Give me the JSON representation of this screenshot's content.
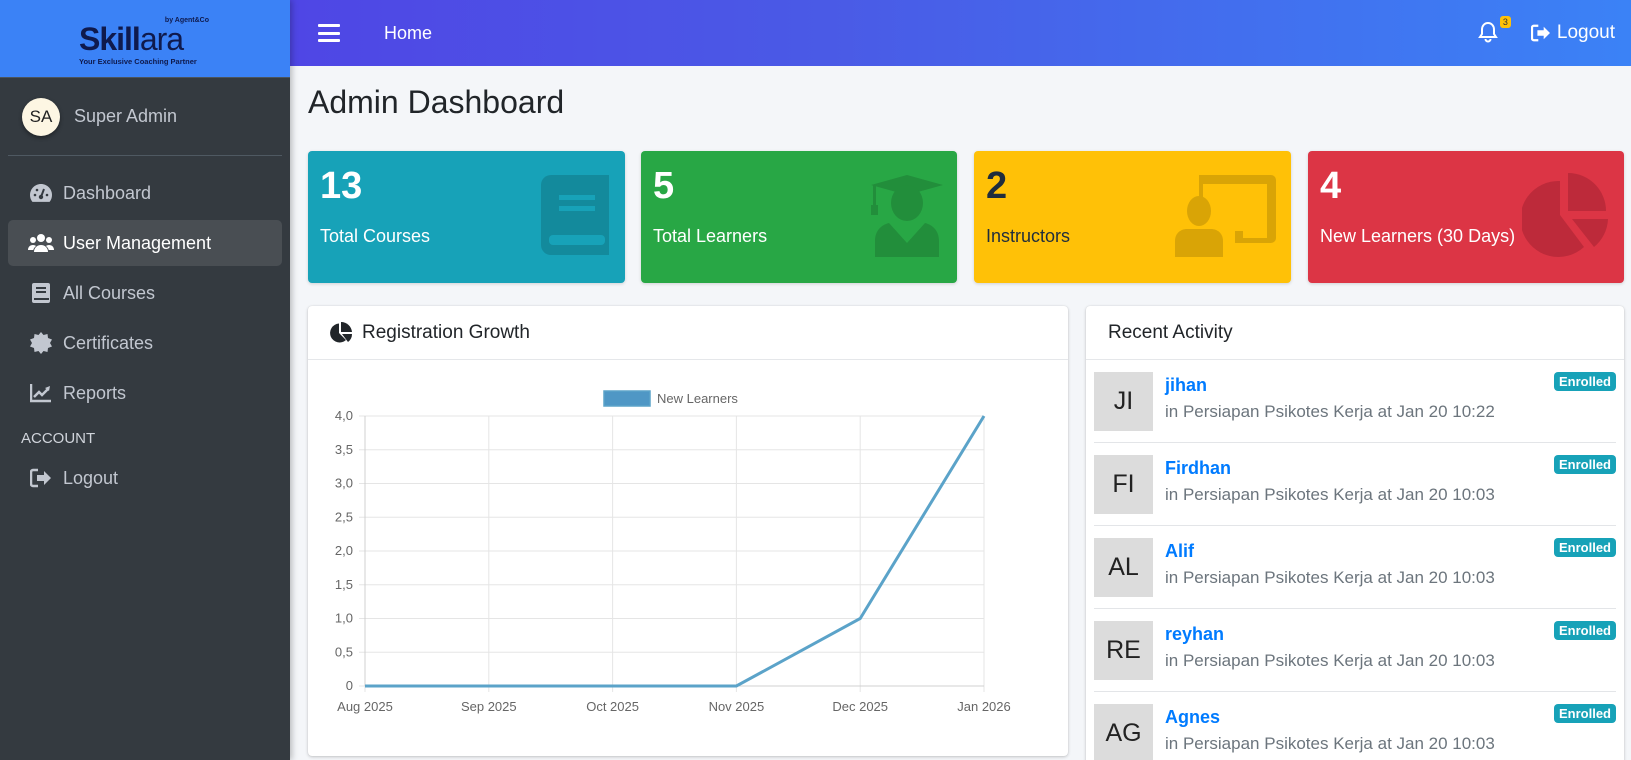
{
  "brand": {
    "by": "by Agent&Co",
    "name_bold": "Skill",
    "name_light": "ara",
    "tagline": "Your Exclusive Coaching Partner",
    "color": "#3b82f6"
  },
  "user": {
    "initials": "SA",
    "name": "Super Admin"
  },
  "sidebar": {
    "items": [
      {
        "label": "Dashboard",
        "icon": "tachometer-icon",
        "active": false
      },
      {
        "label": "User Management",
        "icon": "users-icon",
        "active": true
      },
      {
        "label": "All Courses",
        "icon": "book-icon",
        "active": false
      },
      {
        "label": "Certificates",
        "icon": "certificate-icon",
        "active": false
      },
      {
        "label": "Reports",
        "icon": "chart-line-icon",
        "active": false
      }
    ],
    "account_header": "ACCOUNT",
    "logout_label": "Logout"
  },
  "topbar": {
    "home_label": "Home",
    "notification_count": "3",
    "logout_label": "Logout"
  },
  "page": {
    "title": "Admin Dashboard"
  },
  "stats": [
    {
      "value": "13",
      "label": "Total Courses",
      "icon": "book-icon",
      "color": "#17a2b8"
    },
    {
      "value": "5",
      "label": "Total Learners",
      "icon": "user-graduate-icon",
      "color": "#28a745"
    },
    {
      "value": "2",
      "label": "Instructors",
      "icon": "chalkboard-teacher-icon",
      "color": "#ffc107"
    },
    {
      "value": "4",
      "label": "New Learners (30 Days)",
      "icon": "chart-pie-icon",
      "color": "#dc3545"
    }
  ],
  "chart_card": {
    "title": "Registration Growth"
  },
  "chart_data": {
    "type": "line",
    "title": "Registration Growth",
    "categories": [
      "Aug 2025",
      "Sep 2025",
      "Oct 2025",
      "Nov 2025",
      "Dec 2025",
      "Jan 2026"
    ],
    "series": [
      {
        "name": "New Learners",
        "values": [
          0,
          0,
          0,
          0,
          1,
          4
        ],
        "color": "#5ba3c9"
      }
    ],
    "yticks": [
      "0",
      "0,5",
      "1,0",
      "1,5",
      "2,0",
      "2,5",
      "3,0",
      "3,5",
      "4,0"
    ],
    "ylim": [
      0,
      4
    ],
    "xlabel": "",
    "ylabel": "",
    "grid": true,
    "legend_position": "top"
  },
  "activity": {
    "title": "Recent Activity",
    "items": [
      {
        "initials": "JI",
        "name": "jihan",
        "desc": "in Persiapan Psikotes Kerja at Jan 20 10:22",
        "status": "Enrolled"
      },
      {
        "initials": "FI",
        "name": "Firdhan",
        "desc": "in Persiapan Psikotes Kerja at Jan 20 10:03",
        "status": "Enrolled"
      },
      {
        "initials": "AL",
        "name": "Alif",
        "desc": "in Persiapan Psikotes Kerja at Jan 20 10:03",
        "status": "Enrolled"
      },
      {
        "initials": "RE",
        "name": "reyhan",
        "desc": "in Persiapan Psikotes Kerja at Jan 20 10:03",
        "status": "Enrolled"
      },
      {
        "initials": "AG",
        "name": "Agnes",
        "desc": "in Persiapan Psikotes Kerja at Jan 20 10:03",
        "status": "Enrolled"
      }
    ]
  }
}
